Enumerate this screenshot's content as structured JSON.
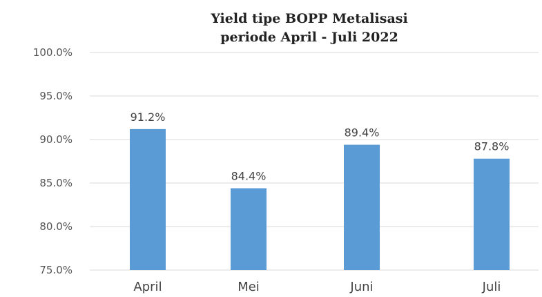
{
  "chart_data": {
    "type": "bar",
    "title_lines": [
      "Yield tipe BOPP Metalisasi",
      "periode April - Juli 2022"
    ],
    "categories": [
      "April",
      "Mei",
      "Juni",
      "Juli"
    ],
    "values": [
      91.2,
      84.4,
      89.4,
      87.8
    ],
    "data_labels": [
      "91.2%",
      "84.4%",
      "89.4%",
      "87.8%"
    ],
    "ylim": [
      75,
      100
    ],
    "y_ticks": [
      75,
      80,
      85,
      90,
      95,
      100
    ],
    "y_tick_labels": [
      "75.0%",
      "80.0%",
      "85.0%",
      "90.0%",
      "95.0%",
      "100.0%"
    ],
    "bar_color": "#5b9bd5",
    "grid": true,
    "legend": "none"
  }
}
